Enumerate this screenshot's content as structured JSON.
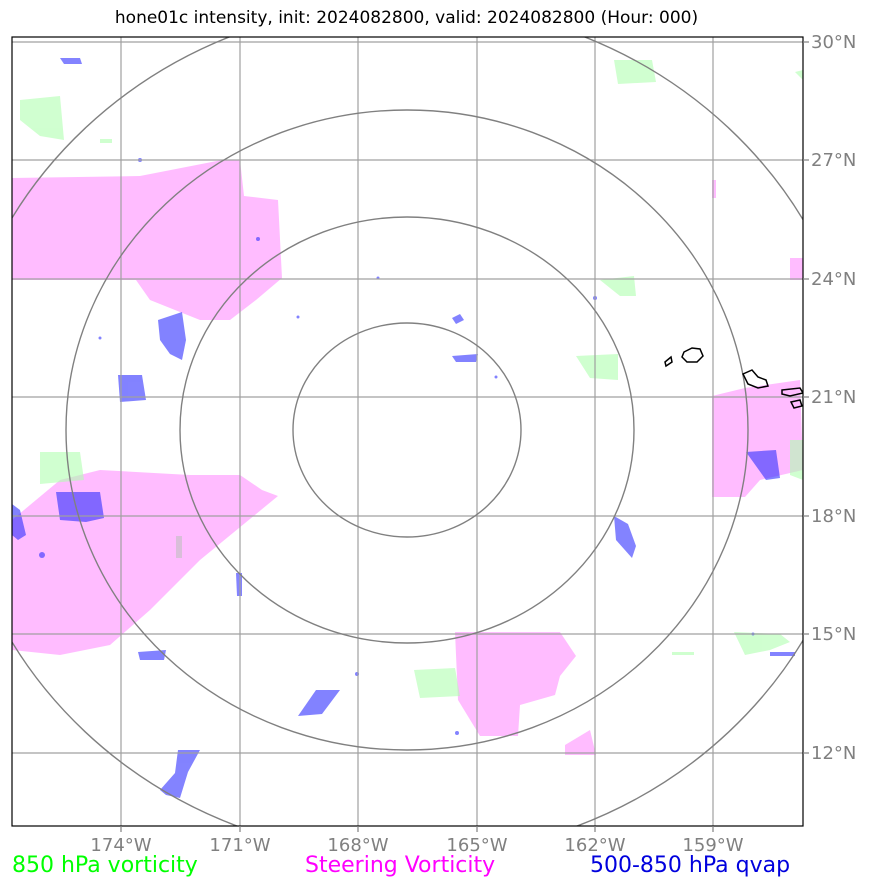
{
  "title": "hone01c intensity, init: 2024082800, valid: 2024082800 (Hour: 000)",
  "map": {
    "lon_labels": [
      "174°W",
      "171°W",
      "168°W",
      "165°W",
      "162°W",
      "159°W"
    ],
    "lat_labels": [
      "30°N",
      "27°N",
      "24°N",
      "21°N",
      "18°N",
      "15°N",
      "12°N"
    ],
    "range_rings": 4,
    "colors": {
      "vort850": "#b0ffb0",
      "steering": "#ffa0ff",
      "qvap": "#3030ff",
      "grid": "#a0a0a0",
      "ring": "#808080",
      "coast": "#000000"
    }
  },
  "legend": {
    "vort850": "850 hPa vorticity",
    "steering": "Steering Vorticity",
    "qvap": "500-850 hPa qvap"
  }
}
